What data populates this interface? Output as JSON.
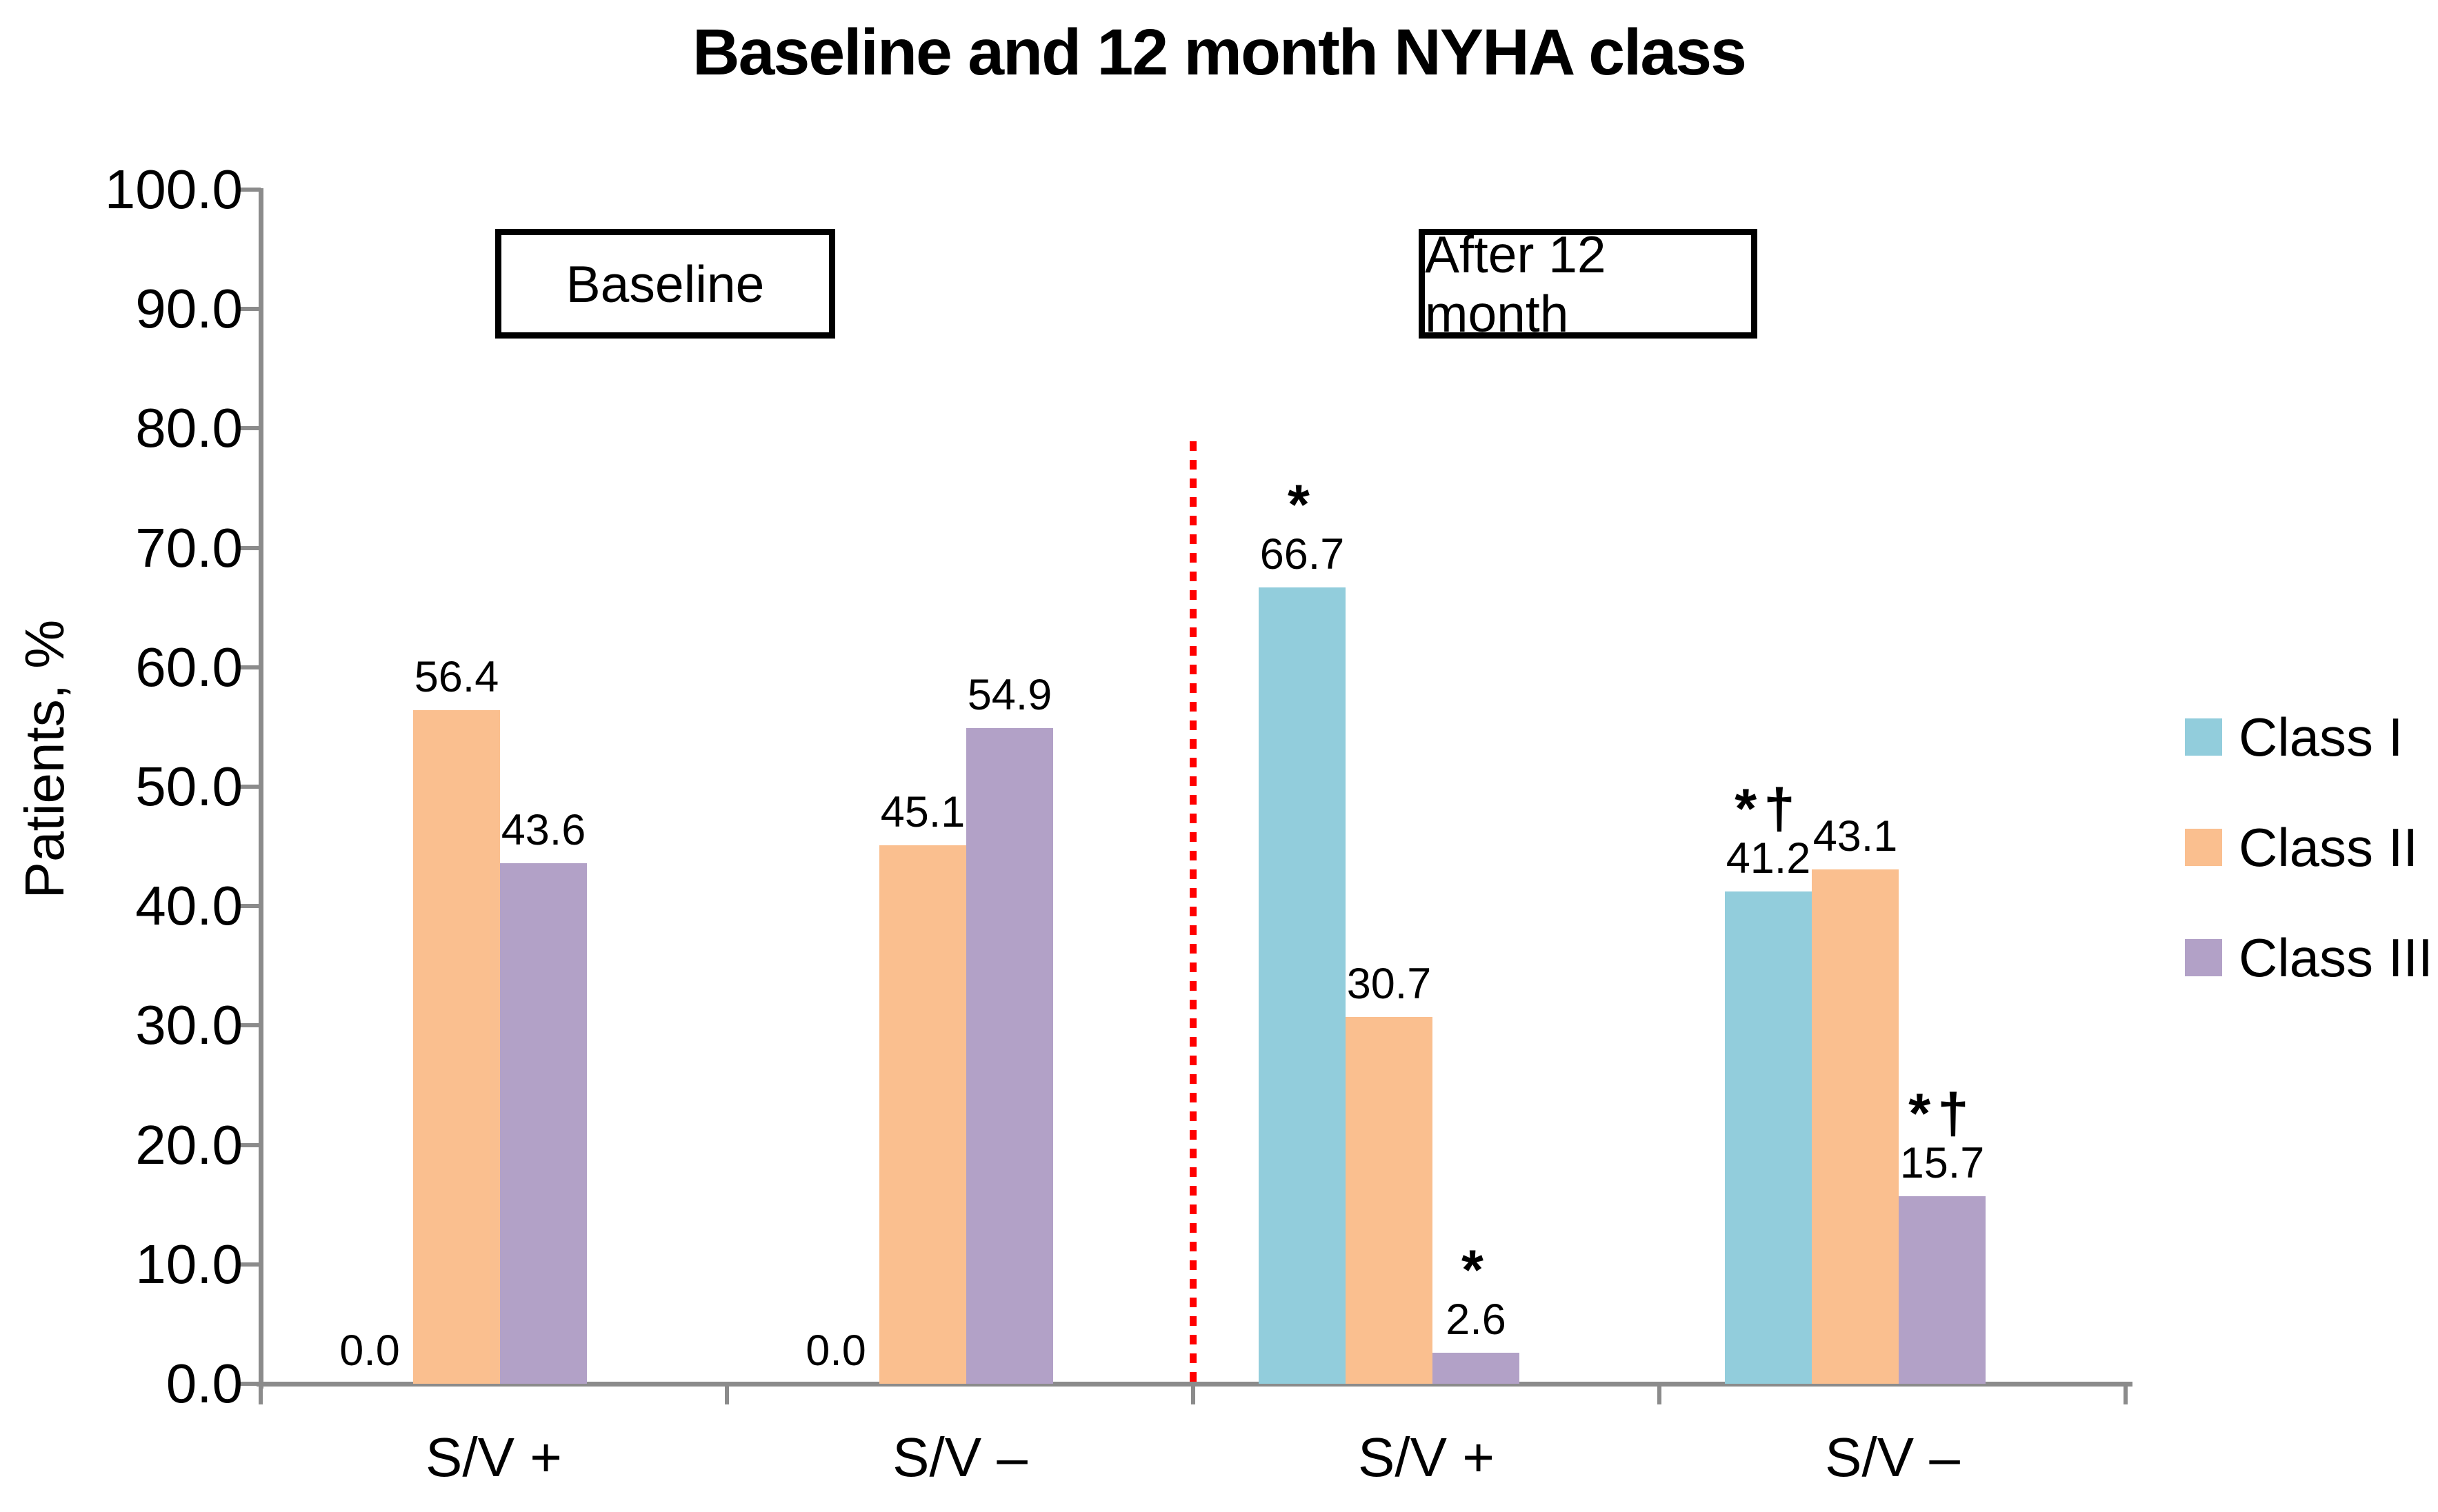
{
  "title": "Baseline and 12 month NYHA class",
  "y_axis": {
    "label": "Patients, %",
    "min": 0,
    "max": 100,
    "tick_step": 10,
    "tick_labels": [
      "0.0",
      "10.0",
      "20.0",
      "30.0",
      "40.0",
      "50.0",
      "60.0",
      "70.0",
      "80.0",
      "90.0",
      "100.0"
    ]
  },
  "period_boxes": [
    {
      "label": "Baseline"
    },
    {
      "label": "After 12 month"
    }
  ],
  "legend": [
    {
      "label": "Class I",
      "color": "#92CDDC"
    },
    {
      "label": "Class II",
      "color": "#FABF8F"
    },
    {
      "label": "Class III",
      "color": "#B2A1C7"
    }
  ],
  "colors": {
    "class_i": "#92CDDC",
    "class_ii": "#FABF8F",
    "class_iii": "#B2A1C7",
    "axis": "#8b8b8b",
    "separator": "#ff0000"
  },
  "chart_data": {
    "type": "bar",
    "categories": [
      "S/V +",
      "S/V –",
      "S/V +",
      "S/V –"
    ],
    "category_periods": [
      "Baseline",
      "Baseline",
      "After 12 month",
      "After 12 month"
    ],
    "series": [
      {
        "name": "Class I",
        "color": "#92CDDC",
        "values": [
          0.0,
          0.0,
          66.7,
          41.2
        ],
        "labels": [
          "0.0",
          "0.0",
          "66.7",
          "41.2"
        ],
        "markers": [
          "",
          "",
          "*",
          "*†"
        ]
      },
      {
        "name": "Class II",
        "color": "#FABF8F",
        "values": [
          56.4,
          45.1,
          30.7,
          43.1
        ],
        "labels": [
          "56.4",
          "45.1",
          "30.7",
          "43.1"
        ],
        "markers": [
          "",
          "",
          "",
          ""
        ]
      },
      {
        "name": "Class III",
        "color": "#B2A1C7",
        "values": [
          43.6,
          54.9,
          2.6,
          15.7
        ],
        "labels": [
          "43.6",
          "54.9",
          "2.6",
          "15.7"
        ],
        "markers": [
          "",
          "",
          "*",
          "*†"
        ]
      }
    ],
    "ylim": [
      0,
      100
    ],
    "ylabel": "Patients, %",
    "xlabel": "",
    "grid": false,
    "legend_position": "right",
    "separator_after_category_index": 1
  }
}
